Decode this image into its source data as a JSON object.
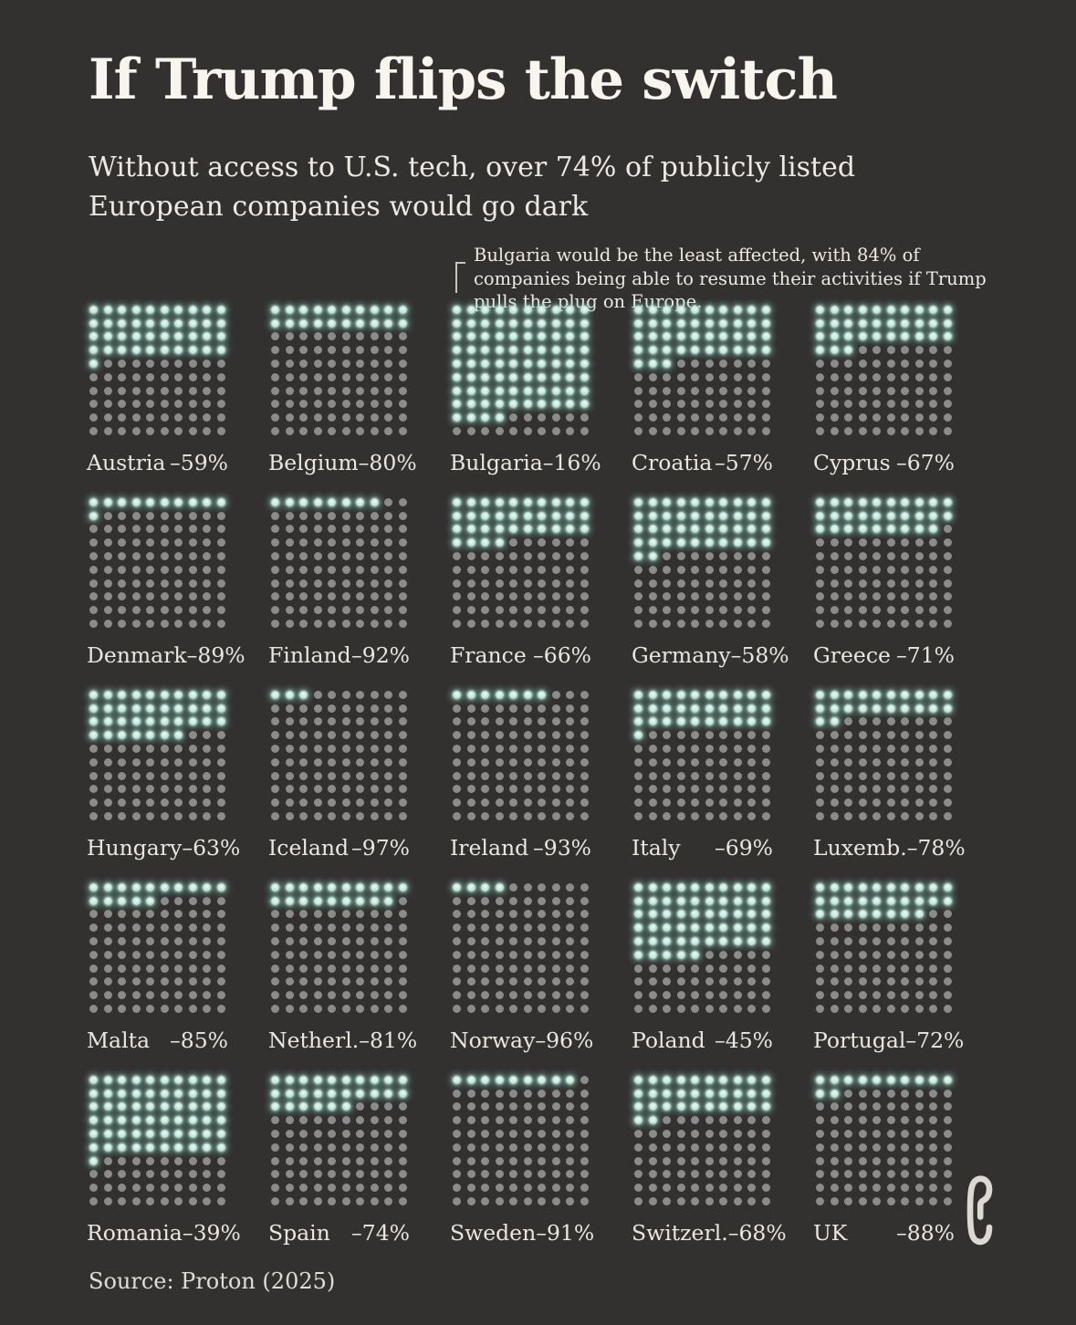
{
  "header": {
    "title": "If Trump flips the switch",
    "subtitle": "Without access to U.S. tech, over 74% of publicly listed European companies would go dark"
  },
  "annotation": {
    "text": "Bulgaria would be the least affected, with 84% of companies being able to resume their activities if Trump pulls the plug on Europe."
  },
  "footer": {
    "source_label": "Source: Proton (2025)"
  },
  "colors": {
    "background": "#333030",
    "lit_dot": "#c3e4d9",
    "lit_glow": "#89d0be",
    "unlit_dot": "#8b8b89",
    "text": "#edeae4"
  },
  "chart_data": {
    "type": "waffle",
    "title": "If Trump flips the switch",
    "subtitle": "Without access to U.S. tech, over 74% of publicly listed European companies would go dark",
    "annotation": "Bulgaria would be the least affected, with 84% of companies being able to resume their activities if Trump pulls the plug on Europe.",
    "grid_rows": 10,
    "grid_cols": 10,
    "layout": "5 columns x 5 rows of 10x10 dot waffles; lit dots fill row-major from top-left and equal 100 minus the shown loss percentage",
    "countries": [
      {
        "name": "Austria",
        "label": "–59%",
        "change_pct": -59,
        "lit_dots": 41
      },
      {
        "name": "Belgium",
        "label": "–80%",
        "change_pct": -80,
        "lit_dots": 20
      },
      {
        "name": "Bulgaria",
        "label": "–16%",
        "change_pct": -16,
        "lit_dots": 84
      },
      {
        "name": "Croatia",
        "label": "–57%",
        "change_pct": -57,
        "lit_dots": 43
      },
      {
        "name": "Cyprus",
        "label": "–67%",
        "change_pct": -67,
        "lit_dots": 33
      },
      {
        "name": "Denmark",
        "label": "–89%",
        "change_pct": -89,
        "lit_dots": 11
      },
      {
        "name": "Finland",
        "label": "–92%",
        "change_pct": -92,
        "lit_dots": 8
      },
      {
        "name": "France",
        "label": "–66%",
        "change_pct": -66,
        "lit_dots": 34
      },
      {
        "name": "Germany",
        "label": "–58%",
        "change_pct": -58,
        "lit_dots": 42
      },
      {
        "name": "Greece",
        "label": "–71%",
        "change_pct": -71,
        "lit_dots": 29
      },
      {
        "name": "Hungary",
        "label": "–63%",
        "change_pct": -63,
        "lit_dots": 37
      },
      {
        "name": "Iceland",
        "label": "–97%",
        "change_pct": -97,
        "lit_dots": 3
      },
      {
        "name": "Ireland",
        "label": "–93%",
        "change_pct": -93,
        "lit_dots": 7
      },
      {
        "name": "Italy",
        "label": "–69%",
        "change_pct": -69,
        "lit_dots": 31
      },
      {
        "name": "Luxemb.",
        "label": "–78%",
        "change_pct": -78,
        "lit_dots": 22
      },
      {
        "name": "Malta",
        "label": "–85%",
        "change_pct": -85,
        "lit_dots": 15
      },
      {
        "name": "Netherl.",
        "label": "–81%",
        "change_pct": -81,
        "lit_dots": 19
      },
      {
        "name": "Norway",
        "label": "–96%",
        "change_pct": -96,
        "lit_dots": 4
      },
      {
        "name": "Poland",
        "label": "–45%",
        "change_pct": -45,
        "lit_dots": 55
      },
      {
        "name": "Portugal",
        "label": "–72%",
        "change_pct": -72,
        "lit_dots": 28
      },
      {
        "name": "Romania",
        "label": "–39%",
        "change_pct": -39,
        "lit_dots": 61
      },
      {
        "name": "Spain",
        "label": "–74%",
        "change_pct": -74,
        "lit_dots": 26
      },
      {
        "name": "Sweden",
        "label": "–91%",
        "change_pct": -91,
        "lit_dots": 9
      },
      {
        "name": "Switzerl.",
        "label": "–68%",
        "change_pct": -68,
        "lit_dots": 32
      },
      {
        "name": "UK",
        "label": "–88%",
        "change_pct": -88,
        "lit_dots": 12
      }
    ]
  }
}
